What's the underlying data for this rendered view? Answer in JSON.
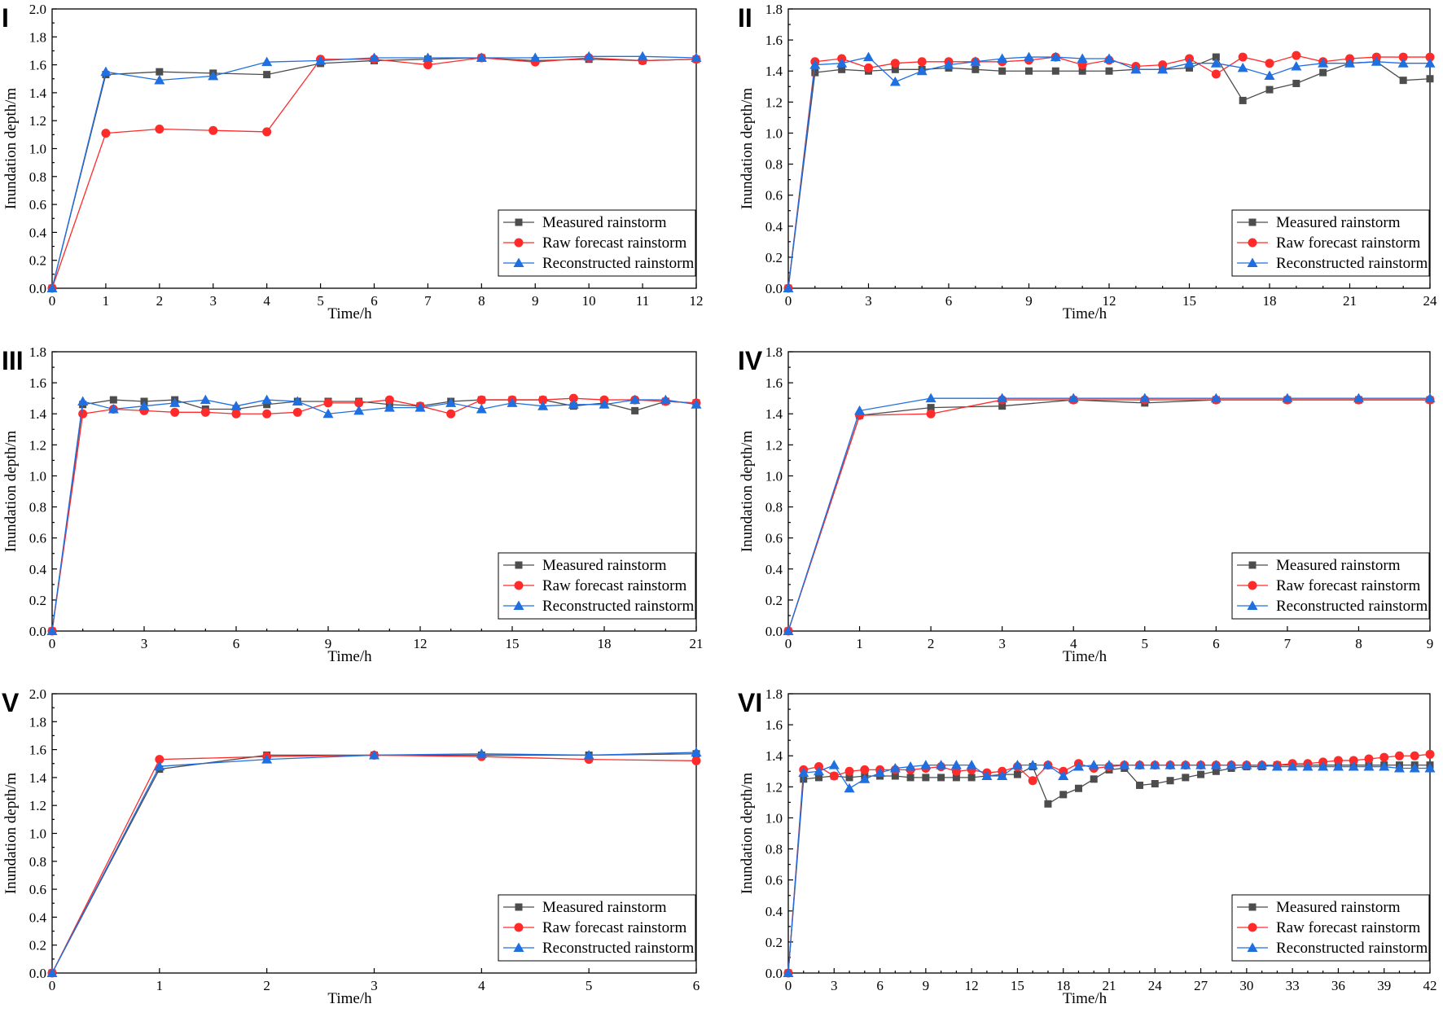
{
  "colors": {
    "measured": "#4d4d4d",
    "raw": "#ff2a2a",
    "reconstructed": "#1f6fe0"
  },
  "chart_data": [
    {
      "panel": "I",
      "type": "line",
      "xlabel": "Time/h",
      "ylabel": "Inundation depth/m",
      "xlim": [
        0,
        12
      ],
      "ylim": [
        0,
        2.0
      ],
      "xticks": [
        "0",
        "1",
        "2",
        "3",
        "4",
        "5",
        "6",
        "7",
        "8",
        "9",
        "10",
        "11",
        "12"
      ],
      "yticks": [
        "0.0",
        "0.2",
        "0.4",
        "0.6",
        "0.8",
        "1.0",
        "1.2",
        "1.4",
        "1.6",
        "1.8",
        "2.0"
      ],
      "legend": "bottom-right",
      "x": [
        0,
        1,
        2,
        3,
        4,
        5,
        6,
        7,
        8,
        9,
        10,
        11,
        12
      ],
      "series": [
        {
          "name": "Measured rainstorm",
          "marker": "square",
          "values": [
            0,
            1.53,
            1.55,
            1.54,
            1.53,
            1.61,
            1.63,
            1.64,
            1.65,
            1.63,
            1.64,
            1.63,
            1.64
          ]
        },
        {
          "name": "Raw forecast rainstorm",
          "marker": "circle",
          "values": [
            0,
            1.11,
            1.14,
            1.13,
            1.12,
            1.64,
            1.64,
            1.6,
            1.65,
            1.62,
            1.65,
            1.63,
            1.64
          ]
        },
        {
          "name": "Reconstructed rainstorm",
          "marker": "triangle",
          "values": [
            0,
            1.55,
            1.49,
            1.52,
            1.62,
            1.63,
            1.65,
            1.65,
            1.65,
            1.65,
            1.66,
            1.66,
            1.65
          ]
        }
      ]
    },
    {
      "panel": "II",
      "type": "line",
      "xlabel": "Time/h",
      "ylabel": "Inundation depth/m",
      "xlim": [
        0,
        24
      ],
      "ylim": [
        0,
        1.8
      ],
      "xticks": [
        "0",
        "3",
        "6",
        "9",
        "12",
        "15",
        "18",
        "21",
        "24"
      ],
      "yticks": [
        "0.0",
        "0.2",
        "0.4",
        "0.6",
        "0.8",
        "1.0",
        "1.2",
        "1.4",
        "1.6",
        "1.8"
      ],
      "legend": "bottom-right",
      "x": [
        0,
        1,
        2,
        3,
        4,
        5,
        6,
        7,
        8,
        9,
        10,
        11,
        12,
        13,
        14,
        15,
        16,
        17,
        18,
        19,
        20,
        21,
        22,
        23,
        24
      ],
      "series": [
        {
          "name": "Measured rainstorm",
          "marker": "square",
          "values": [
            0,
            1.39,
            1.41,
            1.4,
            1.41,
            1.41,
            1.42,
            1.41,
            1.4,
            1.4,
            1.4,
            1.4,
            1.4,
            1.41,
            1.41,
            1.42,
            1.49,
            1.21,
            1.28,
            1.32,
            1.39,
            1.45,
            1.46,
            1.34,
            1.35
          ]
        },
        {
          "name": "Raw forecast rainstorm",
          "marker": "circle",
          "values": [
            0,
            1.46,
            1.48,
            1.42,
            1.45,
            1.46,
            1.46,
            1.46,
            1.46,
            1.47,
            1.49,
            1.44,
            1.47,
            1.43,
            1.44,
            1.48,
            1.38,
            1.49,
            1.45,
            1.5,
            1.46,
            1.48,
            1.49,
            1.49,
            1.49
          ]
        },
        {
          "name": "Reconstructed rainstorm",
          "marker": "triangle",
          "values": [
            0,
            1.44,
            1.45,
            1.49,
            1.33,
            1.4,
            1.44,
            1.46,
            1.48,
            1.49,
            1.49,
            1.48,
            1.48,
            1.41,
            1.41,
            1.45,
            1.45,
            1.42,
            1.37,
            1.43,
            1.45,
            1.45,
            1.46,
            1.45,
            1.45
          ]
        }
      ]
    },
    {
      "panel": "III",
      "type": "line",
      "xlabel": "Time/h",
      "ylabel": "Inundation depth/m",
      "xlim": [
        0,
        21
      ],
      "ylim": [
        0,
        1.8
      ],
      "xticks": [
        "0",
        "3",
        "6",
        "9",
        "12",
        "15",
        "18",
        "21"
      ],
      "yticks": [
        "0.0",
        "0.2",
        "0.4",
        "0.6",
        "0.8",
        "1.0",
        "1.2",
        "1.4",
        "1.6",
        "1.8"
      ],
      "legend": "bottom-right",
      "x": [
        0,
        1,
        2,
        3,
        4,
        5,
        6,
        7,
        8,
        9,
        10,
        11,
        12,
        13,
        14,
        15,
        16,
        17,
        18,
        19,
        20,
        21
      ],
      "series": [
        {
          "name": "Measured rainstorm",
          "marker": "square",
          "values": [
            0,
            1.46,
            1.49,
            1.48,
            1.49,
            1.43,
            1.43,
            1.46,
            1.48,
            1.48,
            1.48,
            1.46,
            1.45,
            1.48,
            1.49,
            1.49,
            1.49,
            1.45,
            1.47,
            1.42,
            1.48,
            1.47
          ]
        },
        {
          "name": "Raw forecast rainstorm",
          "marker": "circle",
          "values": [
            0,
            1.4,
            1.43,
            1.42,
            1.41,
            1.41,
            1.4,
            1.4,
            1.41,
            1.47,
            1.47,
            1.49,
            1.45,
            1.4,
            1.49,
            1.49,
            1.49,
            1.5,
            1.49,
            1.49,
            1.48,
            1.47
          ]
        },
        {
          "name": "Reconstructed rainstorm",
          "marker": "triangle",
          "values": [
            0,
            1.48,
            1.43,
            1.45,
            1.47,
            1.49,
            1.45,
            1.49,
            1.48,
            1.4,
            1.42,
            1.44,
            1.44,
            1.47,
            1.43,
            1.47,
            1.45,
            1.46,
            1.46,
            1.49,
            1.49,
            1.46
          ]
        }
      ]
    },
    {
      "panel": "IV",
      "type": "line",
      "xlabel": "Time/h",
      "ylabel": "Inundation depth/m",
      "xlim": [
        0,
        9
      ],
      "ylim": [
        0,
        1.8
      ],
      "xticks": [
        "0",
        "1",
        "2",
        "3",
        "4",
        "5",
        "6",
        "7",
        "8",
        "9"
      ],
      "yticks": [
        "0.0",
        "0.2",
        "0.4",
        "0.6",
        "0.8",
        "1.0",
        "1.2",
        "1.4",
        "1.6",
        "1.8"
      ],
      "legend": "bottom-right",
      "x": [
        0,
        1,
        2,
        3,
        4,
        5,
        6,
        7,
        8,
        9
      ],
      "series": [
        {
          "name": "Measured rainstorm",
          "marker": "square",
          "values": [
            0,
            1.39,
            1.44,
            1.45,
            1.49,
            1.47,
            1.49,
            1.49,
            1.49,
            1.49
          ]
        },
        {
          "name": "Raw forecast rainstorm",
          "marker": "circle",
          "values": [
            0,
            1.39,
            1.4,
            1.49,
            1.49,
            1.49,
            1.49,
            1.49,
            1.49,
            1.49
          ]
        },
        {
          "name": "Reconstructed rainstorm",
          "marker": "triangle",
          "values": [
            0,
            1.42,
            1.5,
            1.5,
            1.5,
            1.5,
            1.5,
            1.5,
            1.5,
            1.5
          ]
        }
      ]
    },
    {
      "panel": "V",
      "type": "line",
      "xlabel": "Time/h",
      "ylabel": "Inundation depth/m",
      "xlim": [
        0,
        6
      ],
      "ylim": [
        0,
        2.0
      ],
      "xticks": [
        "0",
        "1",
        "2",
        "3",
        "4",
        "5",
        "6"
      ],
      "yticks": [
        "0.0",
        "0.2",
        "0.4",
        "0.6",
        "0.8",
        "1.0",
        "1.2",
        "1.4",
        "1.6",
        "1.8",
        "2.0"
      ],
      "legend": "bottom-right",
      "x": [
        0,
        1,
        2,
        3,
        4,
        5,
        6
      ],
      "series": [
        {
          "name": "Measured rainstorm",
          "marker": "square",
          "values": [
            0,
            1.46,
            1.56,
            1.56,
            1.56,
            1.56,
            1.57
          ]
        },
        {
          "name": "Raw forecast rainstorm",
          "marker": "circle",
          "values": [
            0,
            1.53,
            1.55,
            1.56,
            1.55,
            1.53,
            1.52
          ]
        },
        {
          "name": "Reconstructed rainstorm",
          "marker": "triangle",
          "values": [
            0,
            1.48,
            1.53,
            1.56,
            1.57,
            1.56,
            1.58
          ]
        }
      ]
    },
    {
      "panel": "VI",
      "type": "line",
      "xlabel": "Time/h",
      "ylabel": "Inundation depth/m",
      "xlim": [
        0,
        42
      ],
      "ylim": [
        0,
        1.8
      ],
      "xticks": [
        "0",
        "3",
        "6",
        "9",
        "12",
        "15",
        "18",
        "21",
        "24",
        "27",
        "30",
        "33",
        "36",
        "39",
        "42"
      ],
      "yticks": [
        "0.0",
        "0.2",
        "0.4",
        "0.6",
        "0.8",
        "1.0",
        "1.2",
        "1.4",
        "1.6",
        "1.8"
      ],
      "legend": "bottom-right",
      "x": [
        0,
        1,
        2,
        3,
        4,
        5,
        6,
        7,
        8,
        9,
        10,
        11,
        12,
        13,
        14,
        15,
        16,
        17,
        18,
        19,
        20,
        21,
        22,
        23,
        24,
        25,
        26,
        27,
        28,
        29,
        30,
        31,
        32,
        33,
        34,
        35,
        36,
        37,
        38,
        39,
        40,
        41,
        42
      ],
      "series": [
        {
          "name": "Measured rainstorm",
          "marker": "square",
          "values": [
            0,
            1.25,
            1.26,
            1.27,
            1.26,
            1.27,
            1.27,
            1.27,
            1.26,
            1.26,
            1.26,
            1.26,
            1.26,
            1.27,
            1.28,
            1.28,
            1.33,
            1.09,
            1.15,
            1.19,
            1.25,
            1.31,
            1.32,
            1.21,
            1.22,
            1.24,
            1.26,
            1.28,
            1.3,
            1.32,
            1.33,
            1.33,
            1.34,
            1.34,
            1.34,
            1.34,
            1.34,
            1.34,
            1.34,
            1.34,
            1.34,
            1.34,
            1.34
          ]
        },
        {
          "name": "Raw forecast rainstorm",
          "marker": "circle",
          "values": [
            0,
            1.31,
            1.33,
            1.27,
            1.3,
            1.31,
            1.31,
            1.31,
            1.31,
            1.32,
            1.33,
            1.3,
            1.31,
            1.29,
            1.3,
            1.33,
            1.24,
            1.34,
            1.3,
            1.35,
            1.32,
            1.33,
            1.34,
            1.34,
            1.34,
            1.34,
            1.34,
            1.34,
            1.34,
            1.34,
            1.34,
            1.34,
            1.34,
            1.35,
            1.35,
            1.36,
            1.37,
            1.37,
            1.38,
            1.39,
            1.4,
            1.4,
            1.41
          ]
        },
        {
          "name": "Reconstructed rainstorm",
          "marker": "triangle",
          "values": [
            0,
            1.29,
            1.3,
            1.34,
            1.19,
            1.25,
            1.29,
            1.32,
            1.33,
            1.34,
            1.34,
            1.34,
            1.34,
            1.27,
            1.27,
            1.34,
            1.34,
            1.34,
            1.27,
            1.33,
            1.34,
            1.34,
            1.34,
            1.34,
            1.34,
            1.34,
            1.34,
            1.34,
            1.34,
            1.34,
            1.34,
            1.34,
            1.33,
            1.33,
            1.33,
            1.33,
            1.33,
            1.33,
            1.33,
            1.33,
            1.32,
            1.32,
            1.32
          ]
        }
      ]
    }
  ]
}
